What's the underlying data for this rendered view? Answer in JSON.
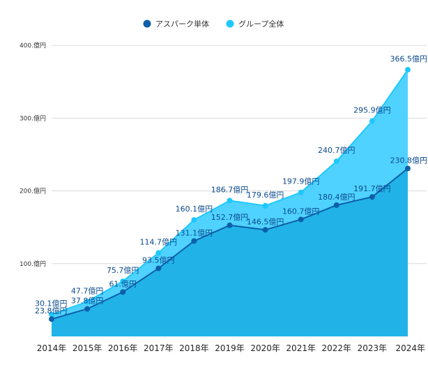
{
  "chart_data": {
    "type": "area",
    "title": "",
    "xlabel": "",
    "ylabel": "",
    "ylim": [
      0,
      400
    ],
    "grid": true,
    "legend_position": "top-center",
    "categories": [
      "2014年",
      "2015年",
      "2016年",
      "2017年",
      "2018年",
      "2019年",
      "2020年",
      "2021年",
      "2022年",
      "2023年",
      "2024年"
    ],
    "y_ticks": [
      {
        "value": 100,
        "label": "100.億円"
      },
      {
        "value": 200,
        "label": "200.億円"
      },
      {
        "value": 300,
        "label": "300.億円"
      },
      {
        "value": 400,
        "label": "400.億円"
      }
    ],
    "series": [
      {
        "name": "アスパーク単体",
        "color": "#0d5fa8",
        "fill": "#21b3e8",
        "values": [
          23.8,
          37.8,
          61.0,
          93.5,
          131.1,
          152.7,
          146.5,
          160.7,
          180.4,
          191.7,
          230.8
        ],
        "labels": [
          "23.8億円",
          "37.8億円",
          "61.億円",
          "93.5億円",
          "131.1億円",
          "152.7億円",
          "146.5億円",
          "160.7億円",
          "180.4億円",
          "191.7億円",
          "230.8億円"
        ]
      },
      {
        "name": "グループ全体",
        "color": "#1ec8ff",
        "fill": "#4fd2ff",
        "values": [
          30.1,
          47.7,
          75.7,
          114.7,
          160.1,
          186.7,
          179.6,
          197.9,
          240.7,
          295.9,
          366.5
        ],
        "labels": [
          "30.1億円",
          "47.7億円",
          "75.7億円",
          "114.7億円",
          "160.1億円",
          "186.7億円",
          "179.6億円",
          "197.9億円",
          "240.7億円",
          "295.9億円",
          "366.5億円"
        ]
      }
    ]
  }
}
